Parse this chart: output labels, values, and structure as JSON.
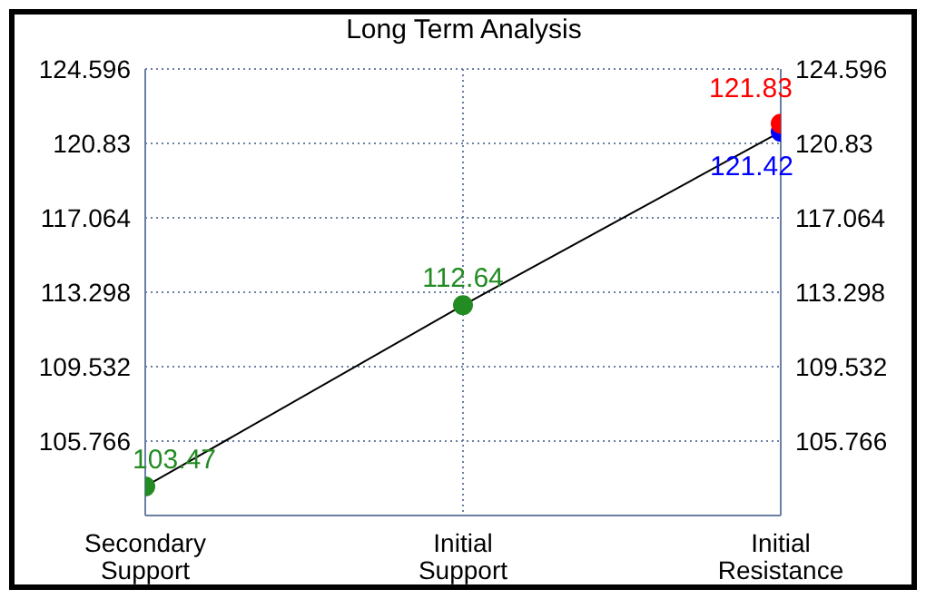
{
  "chart_data": {
    "type": "line",
    "title": "Long Term Analysis",
    "categories": [
      "Secondary Support",
      "Initial Support",
      "Initial Resistance"
    ],
    "series": [
      {
        "color": "#000000",
        "colors": [
          "#228b22",
          "#228b22",
          "#0000ff"
        ],
        "values": [
          103.47,
          112.64,
          121.42
        ]
      },
      {
        "type": "scatter",
        "color": "#ff0000",
        "values": [
          null,
          null,
          121.83
        ]
      }
    ],
    "ylim": [
      102,
      124.596
    ],
    "yticks": [
      105.766,
      109.532,
      113.298,
      117.064,
      120.83,
      124.596
    ],
    "y2lim": [
      102,
      124.596
    ],
    "y2ticks": [
      105.766,
      109.532,
      113.298,
      117.064,
      120.83,
      124.596
    ],
    "grid": true,
    "marker": "circle",
    "data_labels": true,
    "line_style": "solid"
  }
}
